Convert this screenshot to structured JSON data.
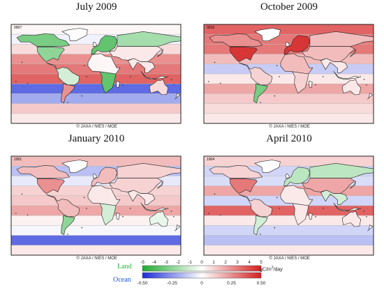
{
  "panels": [
    {
      "title": "July 2009",
      "code": "0907",
      "credit": "© JAXA / NIES / MOE",
      "bands": [
        0.02,
        -0.03,
        0.08,
        0.25,
        0.3,
        0.35,
        -0.35,
        -0.2,
        0.12,
        0.05
      ],
      "regions": [
        {
          "id": "boreal-na",
          "value": -3
        },
        {
          "id": "temperate-na",
          "value": -2.5
        },
        {
          "id": "tropical-sa",
          "value": -1
        },
        {
          "id": "temperate-sa",
          "value": 2.5
        },
        {
          "id": "europe",
          "value": -3.5
        },
        {
          "id": "boreal-asia",
          "value": -2
        },
        {
          "id": "temperate-asia",
          "value": 0.5
        },
        {
          "id": "n-africa",
          "value": 0.2
        },
        {
          "id": "s-africa",
          "value": -3.5
        },
        {
          "id": "tropical-asia",
          "value": 0.5
        },
        {
          "id": "australia",
          "value": 0.8
        }
      ]
    },
    {
      "title": "October 2009",
      "code": "0910",
      "credit": "© JAXA / NIES / MOE",
      "bands": [
        0.35,
        0.3,
        0.3,
        0.15,
        -0.12,
        0.05,
        0.2,
        0.12,
        0.08,
        0.05
      ],
      "regions": [
        {
          "id": "boreal-na",
          "value": 2.5
        },
        {
          "id": "temperate-na",
          "value": 4.5
        },
        {
          "id": "tropical-sa",
          "value": 1
        },
        {
          "id": "temperate-sa",
          "value": -3
        },
        {
          "id": "europe",
          "value": 4.5
        },
        {
          "id": "boreal-asia",
          "value": 1.5
        },
        {
          "id": "temperate-asia",
          "value": 1.5
        },
        {
          "id": "n-africa",
          "value": 1.5
        },
        {
          "id": "s-africa",
          "value": 1
        },
        {
          "id": "tropical-asia",
          "value": 0.5
        },
        {
          "id": "australia",
          "value": 0.5
        }
      ]
    },
    {
      "title": "January 2010",
      "code": "1001",
      "credit": "© JAXA / NIES / MOE",
      "bands": [
        0.15,
        -0.15,
        -0.05,
        0.1,
        0.12,
        0.2,
        0.03,
        -0.02,
        -0.35,
        0.05
      ],
      "regions": [
        {
          "id": "boreal-na",
          "value": 1.5
        },
        {
          "id": "temperate-na",
          "value": 2.5
        },
        {
          "id": "tropical-sa",
          "value": 1.5
        },
        {
          "id": "temperate-sa",
          "value": -2.5
        },
        {
          "id": "europe",
          "value": 1.5
        },
        {
          "id": "boreal-asia",
          "value": 1
        },
        {
          "id": "temperate-asia",
          "value": 1
        },
        {
          "id": "n-africa",
          "value": 0.5
        },
        {
          "id": "s-africa",
          "value": -1
        },
        {
          "id": "tropical-asia",
          "value": 0.5
        },
        {
          "id": "australia",
          "value": -0.5
        }
      ]
    },
    {
      "title": "April 2010",
      "code": "1004",
      "credit": "© JAXA / NIES / MOE",
      "bands": [
        0.1,
        -0.1,
        -0.08,
        0.2,
        -0.1,
        0.35,
        0.05,
        -0.1,
        -0.15,
        0.05
      ],
      "regions": [
        {
          "id": "boreal-na",
          "value": 1
        },
        {
          "id": "temperate-na",
          "value": 3
        },
        {
          "id": "tropical-sa",
          "value": 1
        },
        {
          "id": "temperate-sa",
          "value": -1
        },
        {
          "id": "europe",
          "value": -1.5
        },
        {
          "id": "boreal-asia",
          "value": -1.5
        },
        {
          "id": "temperate-asia",
          "value": 2
        },
        {
          "id": "n-africa",
          "value": 0.5
        },
        {
          "id": "s-africa",
          "value": 0.5
        },
        {
          "id": "tropical-asia",
          "value": -1
        },
        {
          "id": "australia",
          "value": 0.5
        }
      ]
    }
  ],
  "legend": {
    "land_label": "Land",
    "ocean_label": "Ocean",
    "unit_prefix": "gC/m",
    "unit_sup": "2",
    "unit_suffix": "/day",
    "land_ticks": [
      "-5",
      "-4",
      "-3",
      "-2",
      "-1",
      "0",
      "1",
      "2",
      "3",
      "4",
      "5"
    ],
    "ocean_ticks": [
      "-0.50",
      "-0.25",
      "0",
      "0.25",
      "0.50"
    ],
    "land_range": [
      -5,
      5
    ],
    "ocean_range": [
      -0.5,
      0.5
    ],
    "colors": {
      "negative": "#1a2cd6",
      "neutral": "#ffffff",
      "positive": "#d42020",
      "land_negative": "#22b83a"
    }
  }
}
